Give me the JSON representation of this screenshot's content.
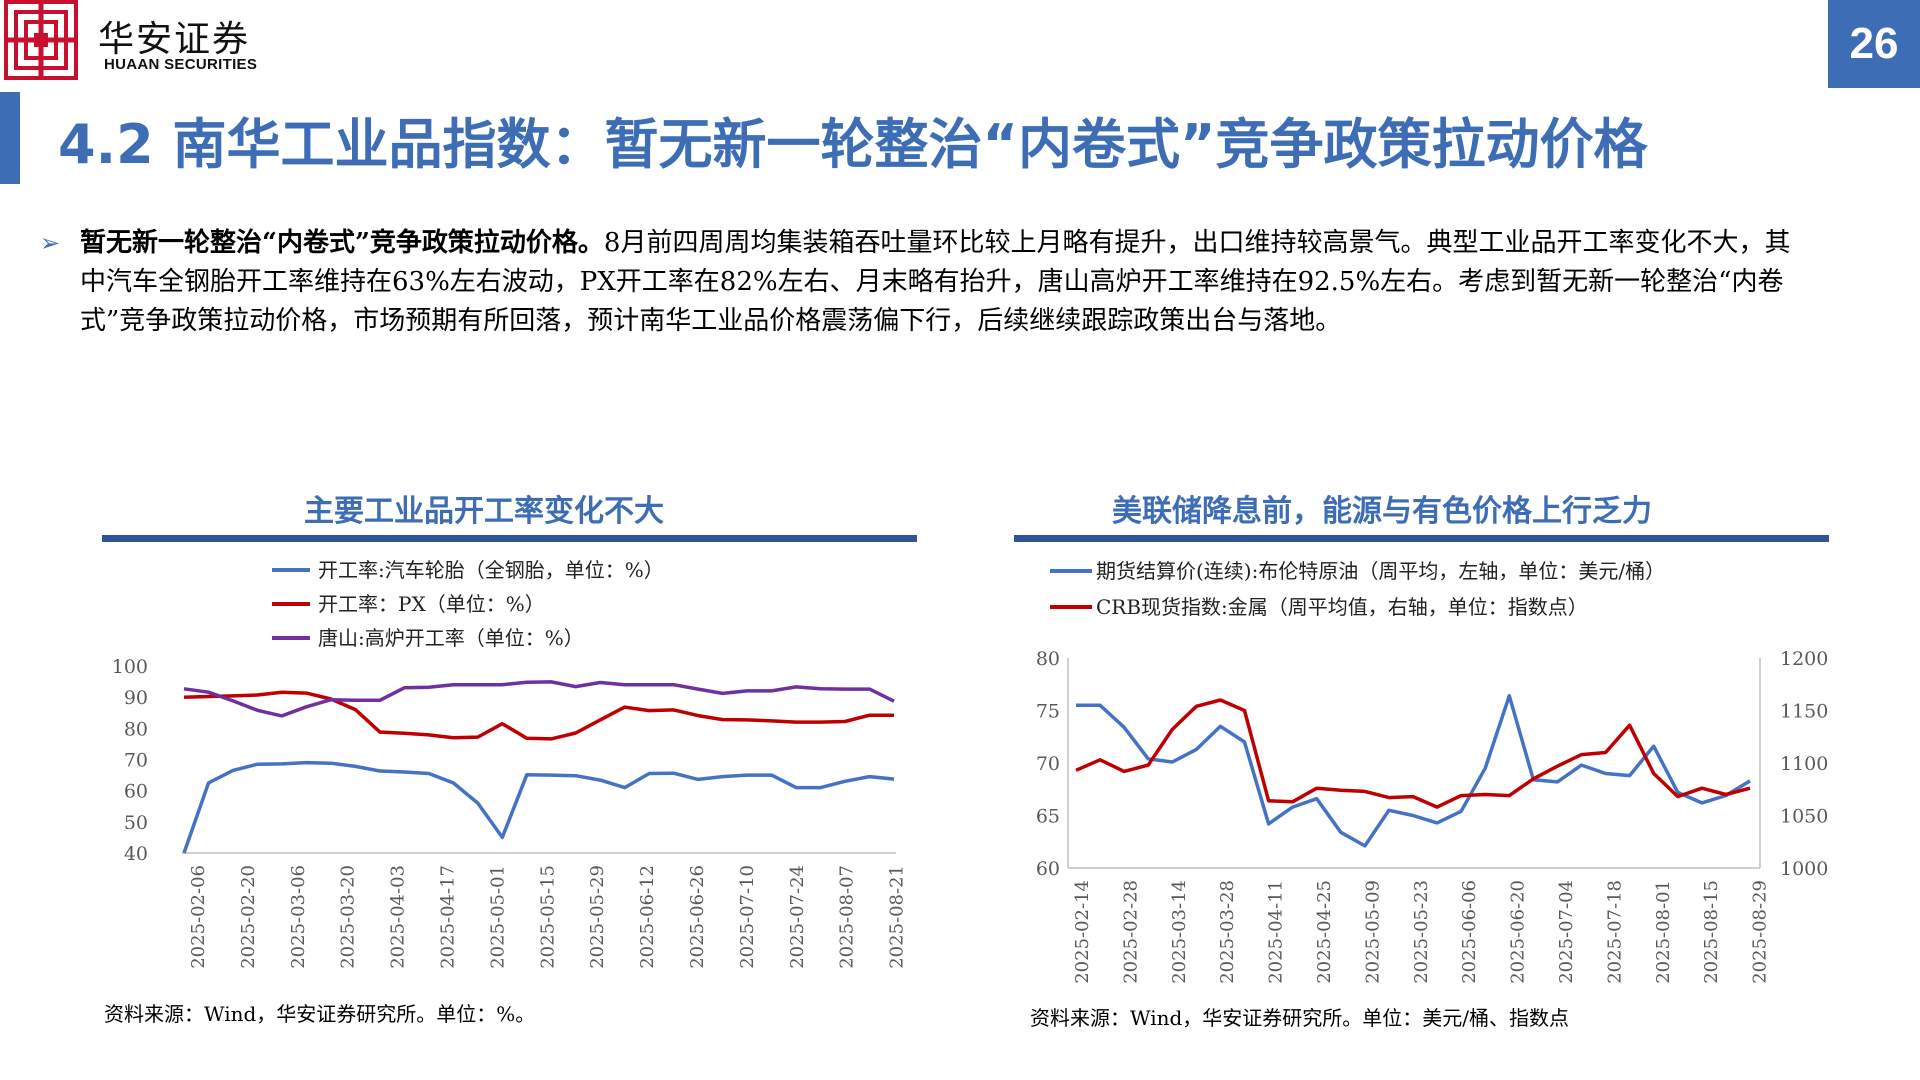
{
  "header": {
    "logo_cn": "华安证券",
    "logo_en": "HUAAN SECURITIES",
    "page_number": "26"
  },
  "title": "4.2 南华工业品指数：暂无新一轮整治“内卷式”竞争政策拉动价格",
  "bullet": {
    "lead": "暂无新一轮整治“内卷式”竞争政策拉动价格。",
    "body": "8月前四周周均集装箱吞吐量环比较上月略有提升，出口维持较高景气。典型工业品开工率变化不大，其中汽车全钢胎开工率维持在63%左右波动，PX开工率在82%左右、月末略有抬升，唐山高炉开工率维持在92.5%左右。考虑到暂无新一轮整治“内卷式”竞争政策拉动价格，市场预期有所回落，预计南华工业品价格震荡偏下行，后续继续跟踪政策出台与落地。"
  },
  "colors": {
    "accent": "#3D6DB5",
    "rule": "#2E5597",
    "blue": "#4472C4",
    "red": "#C00000",
    "purple": "#7030A0"
  },
  "left_panel": {
    "title": "主要工业品开工率变化不大",
    "source": "资料来源：Wind，华安证券研究所。单位：%。"
  },
  "right_panel": {
    "title": "美联储降息前，能源与有色价格上行乏力",
    "source": "资料来源：Wind，华安证券研究所。单位：美元/桶、指数点"
  },
  "chart_data": [
    {
      "type": "line",
      "title": "主要工业品开工率变化不大",
      "x_labels": [
        "2025-02-06",
        "2025-02-20",
        "2025-03-06",
        "2025-03-20",
        "2025-04-03",
        "2025-04-17",
        "2025-05-01",
        "2025-05-15",
        "2025-05-29",
        "2025-06-12",
        "2025-06-26",
        "2025-07-10",
        "2025-07-24",
        "2025-08-07",
        "2025-08-21"
      ],
      "ylim": [
        40,
        100
      ],
      "yticks": [
        "100",
        "90",
        "80",
        "70",
        "60",
        "50",
        "40"
      ],
      "legend_position": "top-left",
      "series": [
        {
          "name": "开工率:汽车轮胎（全钢胎，单位：%）",
          "color": "#4472C4",
          "values": [
            40,
            62.5,
            66.5,
            68.5,
            68.6,
            69,
            68.8,
            67.8,
            66.3,
            66,
            65.5,
            62.5,
            56,
            45,
            65.1,
            65,
            64.8,
            63.4,
            61,
            65.5,
            65.6,
            63.6,
            64.5,
            65,
            65,
            61,
            61,
            63,
            64.5,
            63.7
          ]
        },
        {
          "name": "开工率：PX（单位：%）",
          "color": "#C00000",
          "values": [
            90,
            90.2,
            90.4,
            90.7,
            91.6,
            91.3,
            89.4,
            86,
            78.8,
            78.4,
            77.9,
            77,
            77.2,
            81.5,
            76.8,
            76.6,
            78.5,
            82.7,
            86.8,
            85.7,
            85.9,
            84.1,
            82.8,
            82.7,
            82.4,
            82,
            82,
            82.2,
            84.2,
            84.2
          ]
        },
        {
          "name": "唐山:高炉开工率（单位：%）",
          "color": "#7030A0",
          "values": [
            92.7,
            91.6,
            88.8,
            85.8,
            84,
            86.9,
            89.2,
            89,
            89,
            93,
            93.2,
            94,
            94,
            94,
            94.8,
            94.9,
            93.4,
            94.7,
            94,
            94,
            94,
            92.6,
            91.2,
            92,
            92,
            93.3,
            92.7,
            92.6,
            92.6,
            88.7
          ]
        }
      ]
    },
    {
      "type": "line",
      "title": "美联储降息前，能源与有色价格上行乏力",
      "x_labels": [
        "2025-02-14",
        "2025-02-28",
        "2025-03-14",
        "2025-03-28",
        "2025-04-11",
        "2025-04-25",
        "2025-05-09",
        "2025-05-23",
        "2025-06-06",
        "2025-06-20",
        "2025-07-04",
        "2025-07-18",
        "2025-08-01",
        "2025-08-15",
        "2025-08-29"
      ],
      "ylim_left": [
        60,
        80
      ],
      "ylim_right": [
        1000,
        1200
      ],
      "yticks_left": [
        "80",
        "75",
        "70",
        "65",
        "60"
      ],
      "yticks_right": [
        "1200",
        "1150",
        "1100",
        "1050",
        "1000"
      ],
      "legend_position": "top-left",
      "series": [
        {
          "name": "期货结算价(连续):布伦特原油（周平均，左轴，单位：美元/桶）",
          "color": "#4472C4",
          "axis": "left",
          "values": [
            75.5,
            75.5,
            73.4,
            70.4,
            70.1,
            71.3,
            73.5,
            72,
            64.2,
            65.8,
            66.6,
            63.4,
            62.1,
            65.5,
            65,
            64.3,
            65.4,
            69.5,
            76.4,
            68.4,
            68.2,
            69.8,
            69,
            68.8,
            71.6,
            67.2,
            66.2,
            66.9,
            68.3
          ]
        },
        {
          "name": "CRB现货指数:金属（周平均值，右轴，单位：指数点）",
          "color": "#C00000",
          "axis": "right",
          "values": [
            1093,
            1103,
            1092,
            1098,
            1132,
            1154,
            1160,
            1150,
            1064,
            1063,
            1076,
            1074,
            1073,
            1067,
            1068,
            1058,
            1069,
            1070,
            1069,
            1085,
            1097,
            1108,
            1110,
            1136,
            1090,
            1068,
            1076,
            1070,
            1076
          ]
        }
      ]
    }
  ]
}
